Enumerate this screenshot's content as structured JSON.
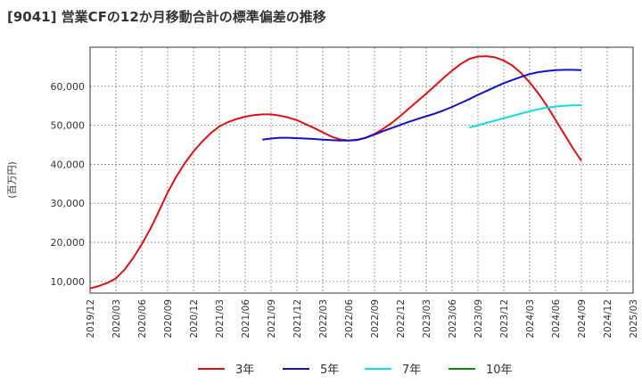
{
  "title": "[9041]  営業CFの12か月移動合計の標準偏差の推移",
  "chart_data": {
    "type": "line",
    "title": "[9041]  営業CFの12か月移動合計の標準偏差の推移",
    "xlabel": "",
    "ylabel": "(百万円)",
    "x_ticks": [
      "2019/12",
      "2020/03",
      "2020/06",
      "2020/09",
      "2020/12",
      "2021/03",
      "2021/06",
      "2021/09",
      "2021/12",
      "2022/03",
      "2022/06",
      "2022/09",
      "2022/12",
      "2023/03",
      "2023/06",
      "2023/09",
      "2023/12",
      "2024/03",
      "2024/06",
      "2024/09",
      "2024/12",
      "2025/03"
    ],
    "y_ticks": [
      10000,
      20000,
      30000,
      40000,
      50000,
      60000
    ],
    "y_tick_labels": [
      "10,000",
      "20,000",
      "30,000",
      "40,000",
      "50,000",
      "60,000"
    ],
    "ylim": [
      7000,
      70000
    ],
    "grid": true,
    "legend_position": "bottom",
    "series": [
      {
        "name": "3年",
        "color": "#dd1111",
        "x": [
          "2019/12",
          "2020/01",
          "2020/02",
          "2020/03",
          "2020/04",
          "2020/05",
          "2020/06",
          "2020/07",
          "2020/08",
          "2020/09",
          "2020/10",
          "2020/11",
          "2020/12",
          "2021/01",
          "2021/02",
          "2021/03",
          "2021/04",
          "2021/05",
          "2021/06",
          "2021/07",
          "2021/08",
          "2021/09",
          "2021/10",
          "2021/11",
          "2021/12",
          "2022/01",
          "2022/02",
          "2022/03",
          "2022/04",
          "2022/05",
          "2022/06",
          "2022/07",
          "2022/08",
          "2022/09",
          "2022/10",
          "2022/11",
          "2022/12",
          "2023/01",
          "2023/02",
          "2023/03",
          "2023/04",
          "2023/05",
          "2023/06",
          "2023/07",
          "2023/08",
          "2023/09",
          "2023/10",
          "2023/11",
          "2023/12",
          "2024/01",
          "2024/02",
          "2024/03",
          "2024/04",
          "2024/05",
          "2024/06",
          "2024/07",
          "2024/08",
          "2024/09"
        ],
        "values": [
          8200,
          8800,
          9600,
          10800,
          13000,
          16000,
          19500,
          23500,
          28000,
          32800,
          36800,
          40300,
          43300,
          45800,
          48000,
          49700,
          50800,
          51600,
          52200,
          52600,
          52800,
          52800,
          52500,
          52000,
          51300,
          50300,
          49300,
          48200,
          47100,
          46400,
          46100,
          46200,
          46800,
          47800,
          49100,
          50600,
          52400,
          54300,
          56200,
          58100,
          60100,
          62100,
          64000,
          65700,
          67000,
          67600,
          67700,
          67400,
          66600,
          65300,
          63400,
          61000,
          58200,
          55000,
          51400,
          47800,
          44200,
          40900
        ]
      },
      {
        "name": "5年",
        "color": "#1111cc",
        "x": [
          "2021/08",
          "2021/09",
          "2021/10",
          "2021/11",
          "2021/12",
          "2022/01",
          "2022/02",
          "2022/03",
          "2022/04",
          "2022/05",
          "2022/06",
          "2022/07",
          "2022/08",
          "2022/09",
          "2022/10",
          "2022/11",
          "2022/12",
          "2023/01",
          "2023/02",
          "2023/03",
          "2023/04",
          "2023/05",
          "2023/06",
          "2023/07",
          "2023/08",
          "2023/09",
          "2023/10",
          "2023/11",
          "2023/12",
          "2024/01",
          "2024/02",
          "2024/03",
          "2024/04",
          "2024/05",
          "2024/06",
          "2024/07",
          "2024/08",
          "2024/09"
        ],
        "values": [
          46300,
          46600,
          46800,
          46800,
          46700,
          46600,
          46500,
          46300,
          46200,
          46100,
          46100,
          46300,
          46800,
          47600,
          48500,
          49300,
          50100,
          50900,
          51600,
          52300,
          53000,
          53800,
          54700,
          55700,
          56700,
          57800,
          58800,
          59800,
          60800,
          61600,
          62400,
          63100,
          63600,
          63900,
          64100,
          64200,
          64200,
          64100
        ]
      },
      {
        "name": "7年",
        "color": "#11dddd",
        "x": [
          "2023/08",
          "2023/09",
          "2023/10",
          "2023/11",
          "2023/12",
          "2024/01",
          "2024/02",
          "2024/03",
          "2024/04",
          "2024/05",
          "2024/06",
          "2024/07",
          "2024/08",
          "2024/09"
        ],
        "values": [
          49400,
          50000,
          50600,
          51200,
          51800,
          52400,
          53000,
          53600,
          54100,
          54500,
          54800,
          55000,
          55100,
          55100
        ]
      },
      {
        "name": "10年",
        "color": "#118811",
        "x": [],
        "values": []
      }
    ]
  }
}
